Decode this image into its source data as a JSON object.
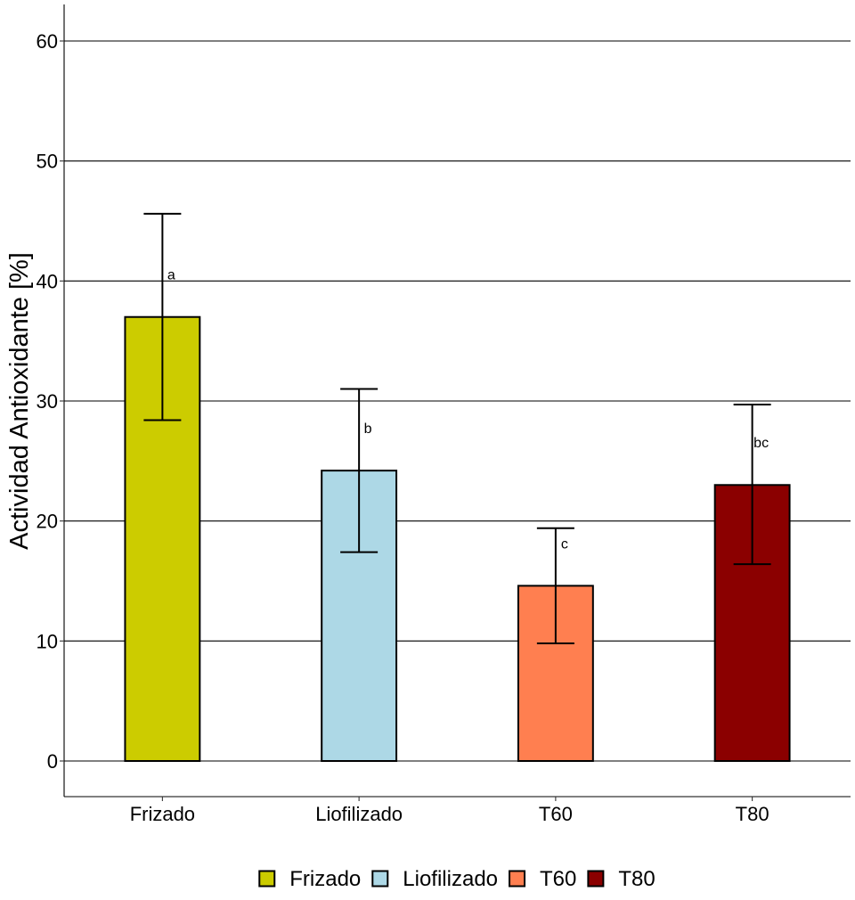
{
  "chart_data": {
    "type": "bar",
    "categories": [
      "Frizado",
      "Liofilizado",
      "T60",
      "T80"
    ],
    "values": [
      37.0,
      24.2,
      14.6,
      23.0
    ],
    "error_low": [
      28.4,
      17.4,
      9.8,
      16.4
    ],
    "error_high": [
      45.6,
      31.0,
      19.4,
      29.7
    ],
    "significance": [
      "a",
      "b",
      "c",
      "bc"
    ],
    "colors": [
      "#CCCC00",
      "#ADD8E6",
      "#FF7F50",
      "#8B0000"
    ],
    "ylabel": "Actividad Antioxidante [%]",
    "xlabel": "",
    "yticks": [
      0,
      10,
      20,
      30,
      40,
      50,
      60
    ],
    "ytick_labels": [
      "0",
      "10",
      "20",
      "30",
      "40",
      "50",
      "60"
    ],
    "ylim": [
      -3,
      63
    ],
    "grid": "horizontal major",
    "legend": {
      "position": "bottom",
      "entries": [
        "Frizado",
        "Liofilizado",
        "T60",
        "T80"
      ]
    }
  }
}
